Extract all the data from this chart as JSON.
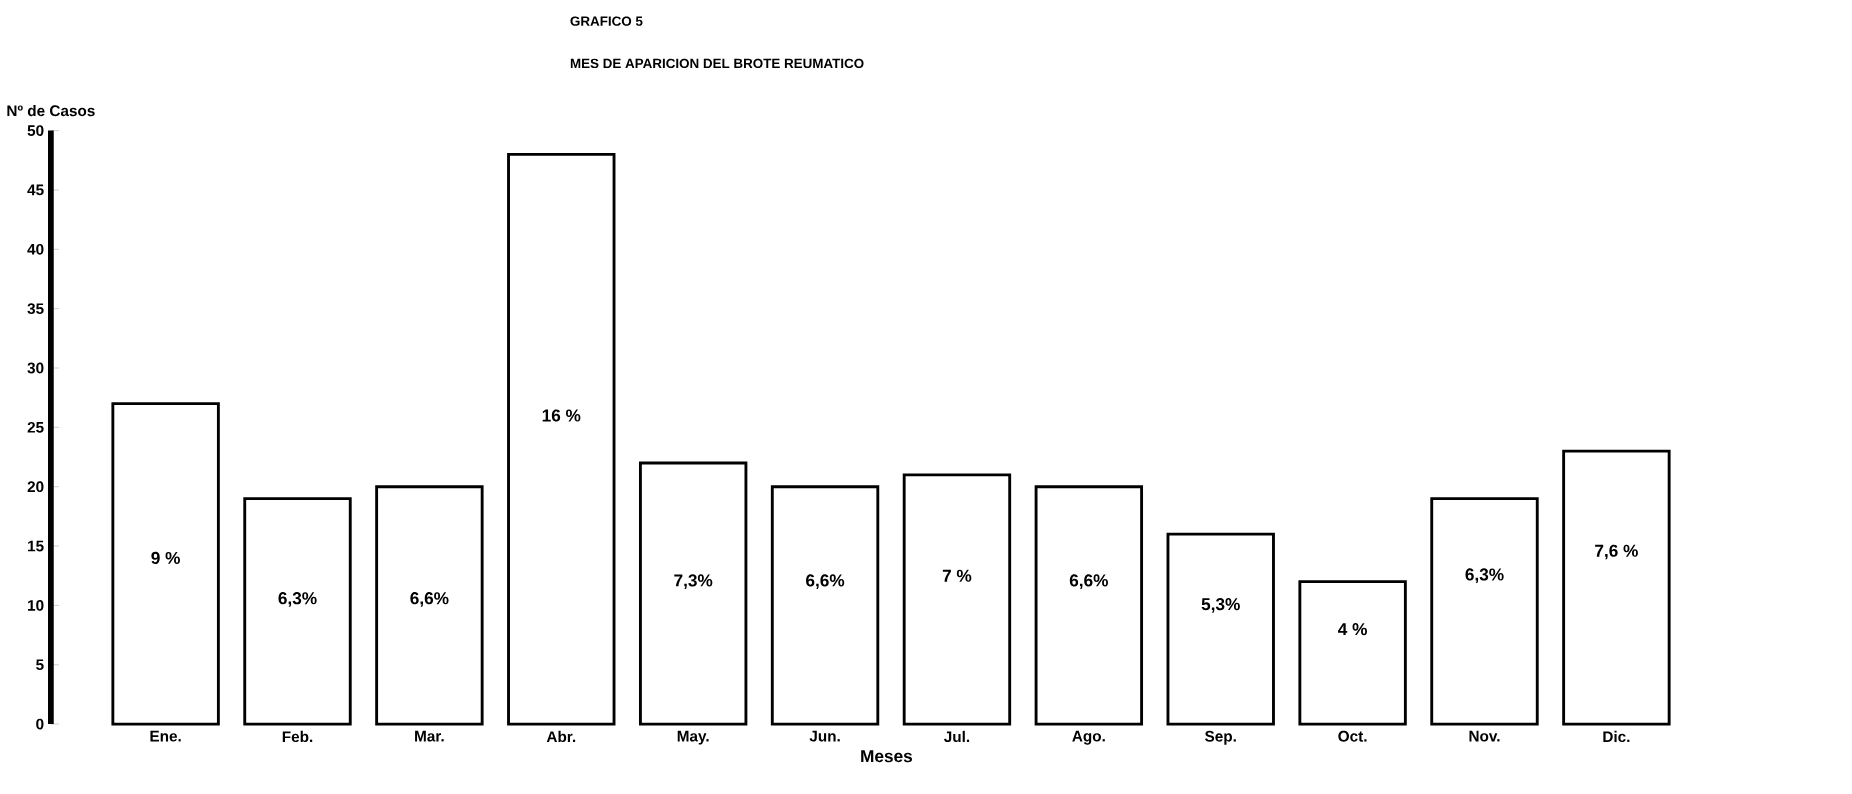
{
  "chart_data": {
    "type": "bar",
    "title": "GRAFICO 5",
    "subtitle": "MES DE APARICION DEL BROTE REUMATICO",
    "xlabel": "Meses",
    "ylabel": "Nº de Casos",
    "categories": [
      "Ene.",
      "Feb.",
      "Mar.",
      "Abr.",
      "May.",
      "Jun.",
      "Jul.",
      "Ago.",
      "Sep.",
      "Oct.",
      "Nov.",
      "Dic."
    ],
    "values": [
      27,
      19,
      20,
      48,
      22,
      20,
      21,
      20,
      16,
      12,
      19,
      23
    ],
    "annotations": [
      {
        "text": "9 %",
        "x": "Ene.",
        "y": 14
      },
      {
        "text": "6,3%",
        "x": "Feb.",
        "y": 10.5
      },
      {
        "text": "6,6%",
        "x": "Mar.",
        "y": 10.5
      },
      {
        "text": "16 %",
        "x": "Abr.",
        "y": 26
      },
      {
        "text": "7,3%",
        "x": "May.",
        "y": 12
      },
      {
        "text": "6,6%",
        "x": "Jun.",
        "y": 12
      },
      {
        "text": "7 %",
        "x": "Jul.",
        "y": 12.5
      },
      {
        "text": "6,6%",
        "x": "Ago.",
        "y": 12
      },
      {
        "text": "5,3%",
        "x": "Sep.",
        "y": 10
      },
      {
        "text": "4 %",
        "x": "Oct.",
        "y": 8
      },
      {
        "text": "6,3%",
        "x": "Nov.",
        "y": 12.5
      },
      {
        "text": "7,6 %",
        "x": "Dic.",
        "y": 14.5
      }
    ],
    "color": "#ffffff",
    "ylim": [
      0,
      50
    ],
    "yticks": [
      0,
      5,
      10,
      15,
      20,
      25,
      30,
      35,
      40,
      45,
      50
    ],
    "grid": false
  }
}
